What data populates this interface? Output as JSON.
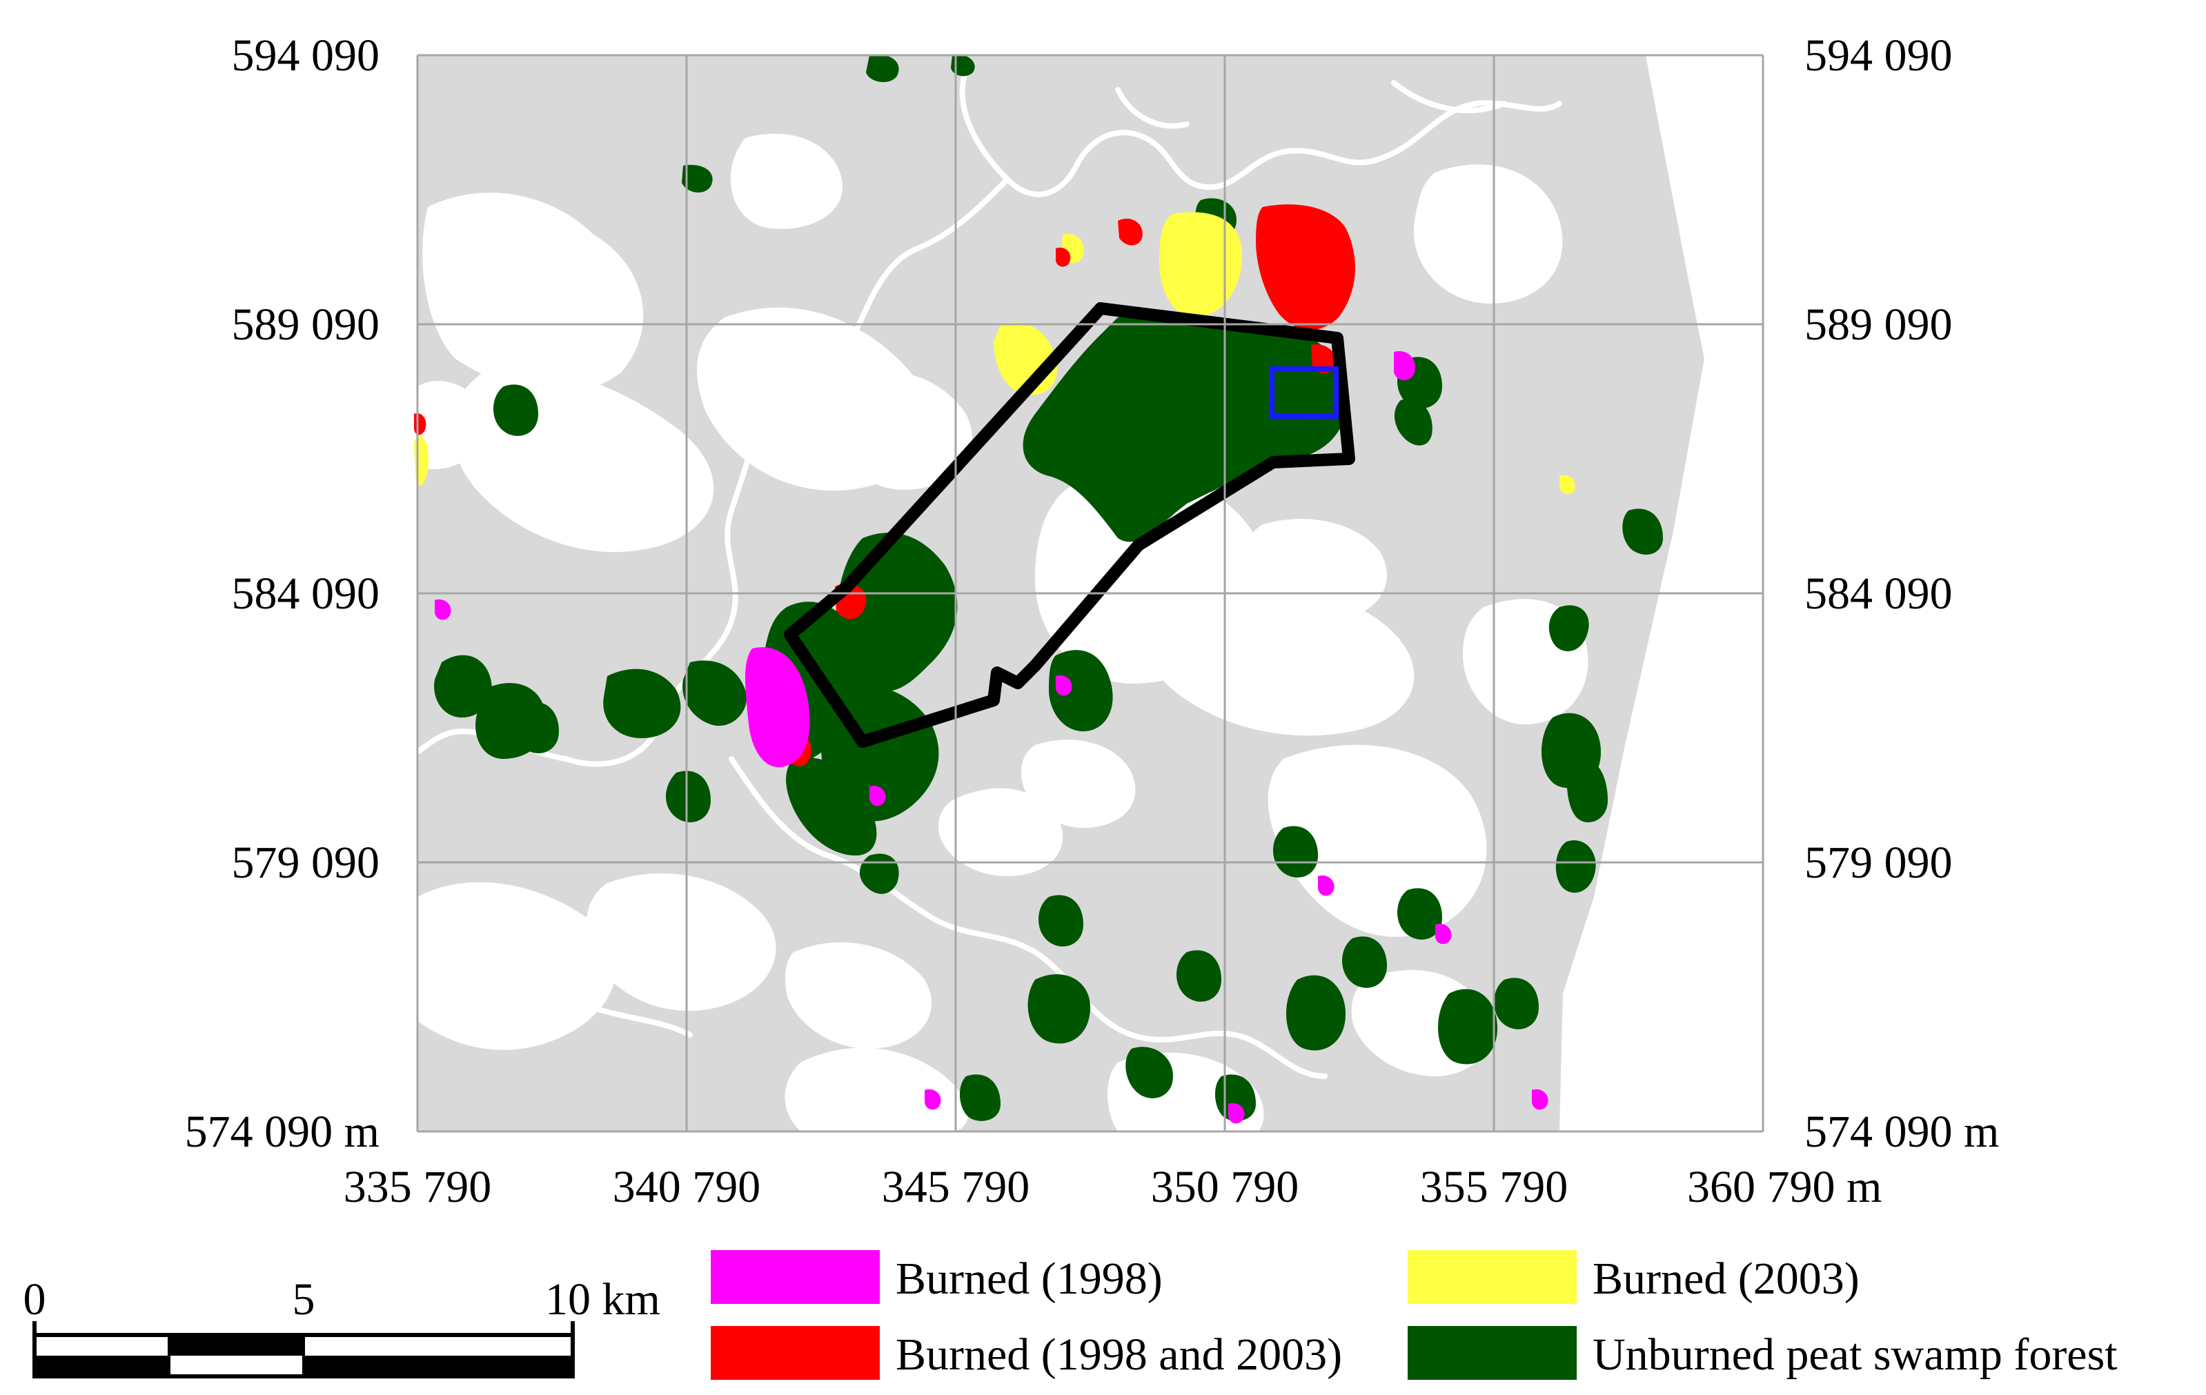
{
  "map": {
    "y_ticks": [
      "594 090",
      "589 090",
      "584 090",
      "579 090",
      "574 090 m"
    ],
    "y_ticks_right": [
      "594 090",
      "589 090",
      "584 090",
      "579 090",
      "574 090 m"
    ],
    "x_ticks": [
      "335 790",
      "340 790",
      "345 790",
      "350 790",
      "355 790",
      "360 790 m"
    ]
  },
  "scale_bar": {
    "labels": [
      "0",
      "5",
      "10 km"
    ]
  },
  "legend": {
    "items": [
      {
        "label": "Burned (1998)",
        "color": "#ff00ff"
      },
      {
        "label": "Burned (2003)",
        "color": "#ffff44"
      },
      {
        "label": "Burned (1998 and 2003)",
        "color": "#ff0000"
      },
      {
        "label": "Unburned peat swamp forest",
        "color": "#005500"
      }
    ]
  },
  "colors": {
    "background_land": "#d9d9d9",
    "cleared": "#ffffff",
    "grid": "#a6a6a6",
    "boundary": "#000000",
    "inset_box": "#1a1aff"
  }
}
